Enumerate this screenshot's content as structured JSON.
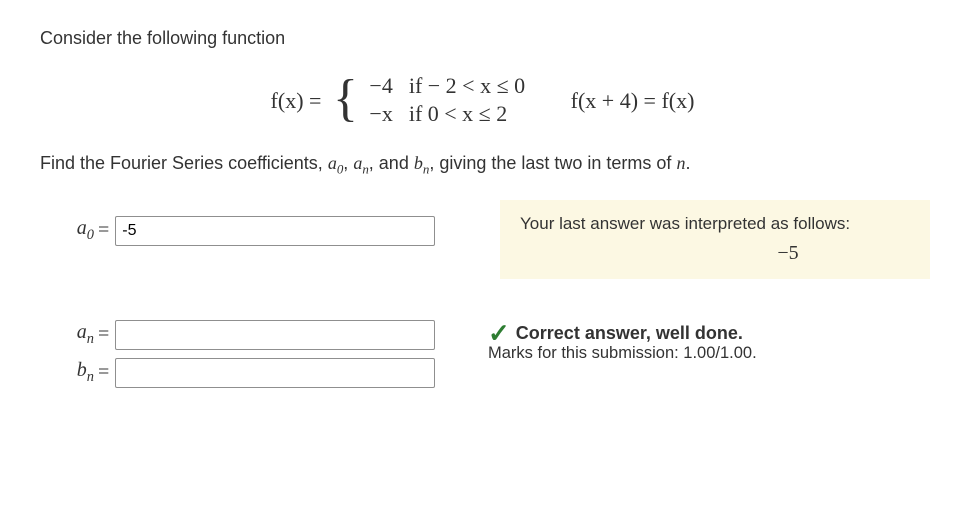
{
  "prompt": {
    "line1": "Consider the following function",
    "line2_prefix": "Find the Fourier Series coefficients, ",
    "line2_mid1": ", ",
    "line2_mid2": ", and ",
    "line2_suffix": ", giving the last two in terms of ",
    "line2_end": ".",
    "a0": "a",
    "a0_sub": "0",
    "an": "a",
    "an_sub": "n",
    "bn": "b",
    "bn_sub": "n",
    "n": "n"
  },
  "equation": {
    "lhs": "f(x) = ",
    "piece1_val": "−4",
    "piece1_cond": "if − 2 < x ≤ 0",
    "piece2_val": "−x",
    "piece2_cond": "if 0 < x ≤ 2",
    "periodic": "f(x + 4) = f(x)"
  },
  "inputs": {
    "a0_value": "-5",
    "an_value": "",
    "bn_value": ""
  },
  "labels": {
    "a0_lhs_a": "a",
    "a0_lhs_sub": "0",
    "an_lhs_a": "a",
    "an_lhs_sub": "n",
    "bn_lhs_b": "b",
    "bn_lhs_sub": "n",
    "equals": " = "
  },
  "feedback": {
    "interpreted_text": "Your last answer was interpreted as follows:",
    "interpreted_value": "−5",
    "correct_text": "Correct answer, well done.",
    "marks_text": "Marks for this submission: 1.00/1.00."
  },
  "colors": {
    "feedback_bg": "#fcf8e3",
    "check_color": "#2e7d32",
    "text_color": "#333333"
  }
}
